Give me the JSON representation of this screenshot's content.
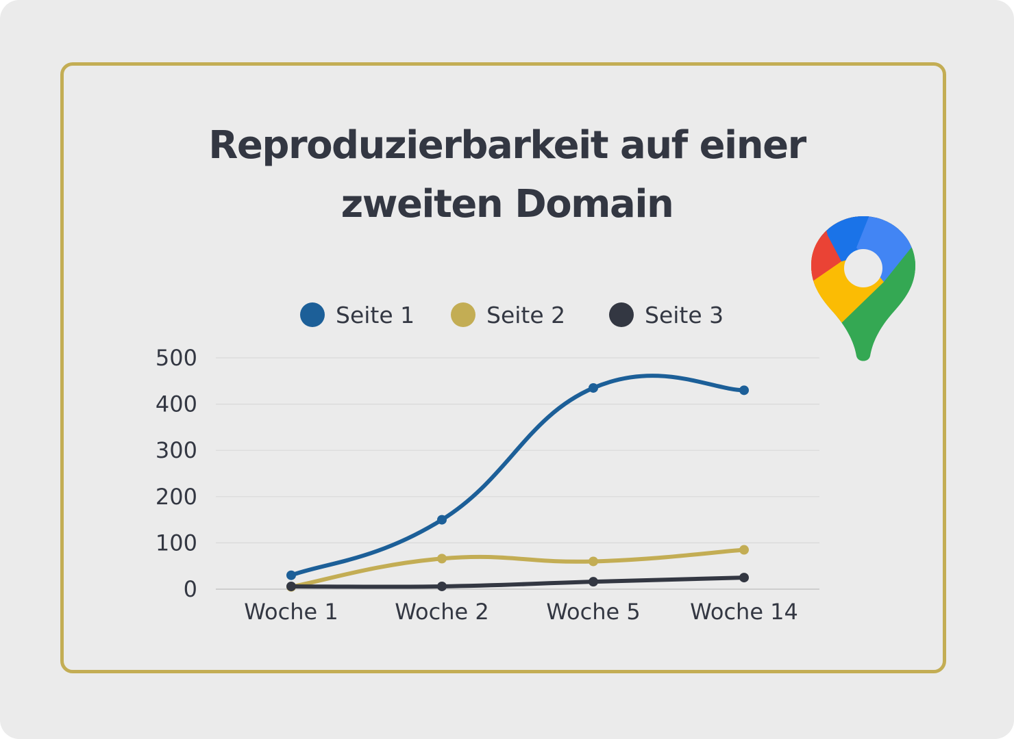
{
  "title_line1": "Reproduzierbarkeit auf einer",
  "title_line2": "zweiten Domain",
  "logo": {
    "icon": "google-maps-pin-icon",
    "colors": [
      "#1a73e8",
      "#4285f4",
      "#ea4335",
      "#fbbc04",
      "#34a853"
    ]
  },
  "colors": {
    "frame": "#c3ad54",
    "background": "#ebebeb",
    "text": "#333742",
    "grid": "#d9d9d9"
  },
  "chart_data": {
    "type": "line",
    "title": "Reproduzierbarkeit auf einer zweiten Domain",
    "xlabel": "",
    "ylabel": "",
    "categories": [
      "Woche 1",
      "Woche 2",
      "Woche 5",
      "Woche 14"
    ],
    "ylim": [
      0,
      500
    ],
    "yticks": [
      "0",
      "100",
      "200",
      "300",
      "400",
      "500"
    ],
    "grid": true,
    "legend_position": "top",
    "smooth": true,
    "series": [
      {
        "name": "Seite 1",
        "color": "#1c5f98",
        "values": [
          30,
          150,
          435,
          430
        ]
      },
      {
        "name": "Seite 2",
        "color": "#c3ad54",
        "values": [
          5,
          66,
          60,
          85
        ]
      },
      {
        "name": "Seite 3",
        "color": "#333742",
        "values": [
          6,
          6,
          16,
          25
        ]
      }
    ]
  }
}
